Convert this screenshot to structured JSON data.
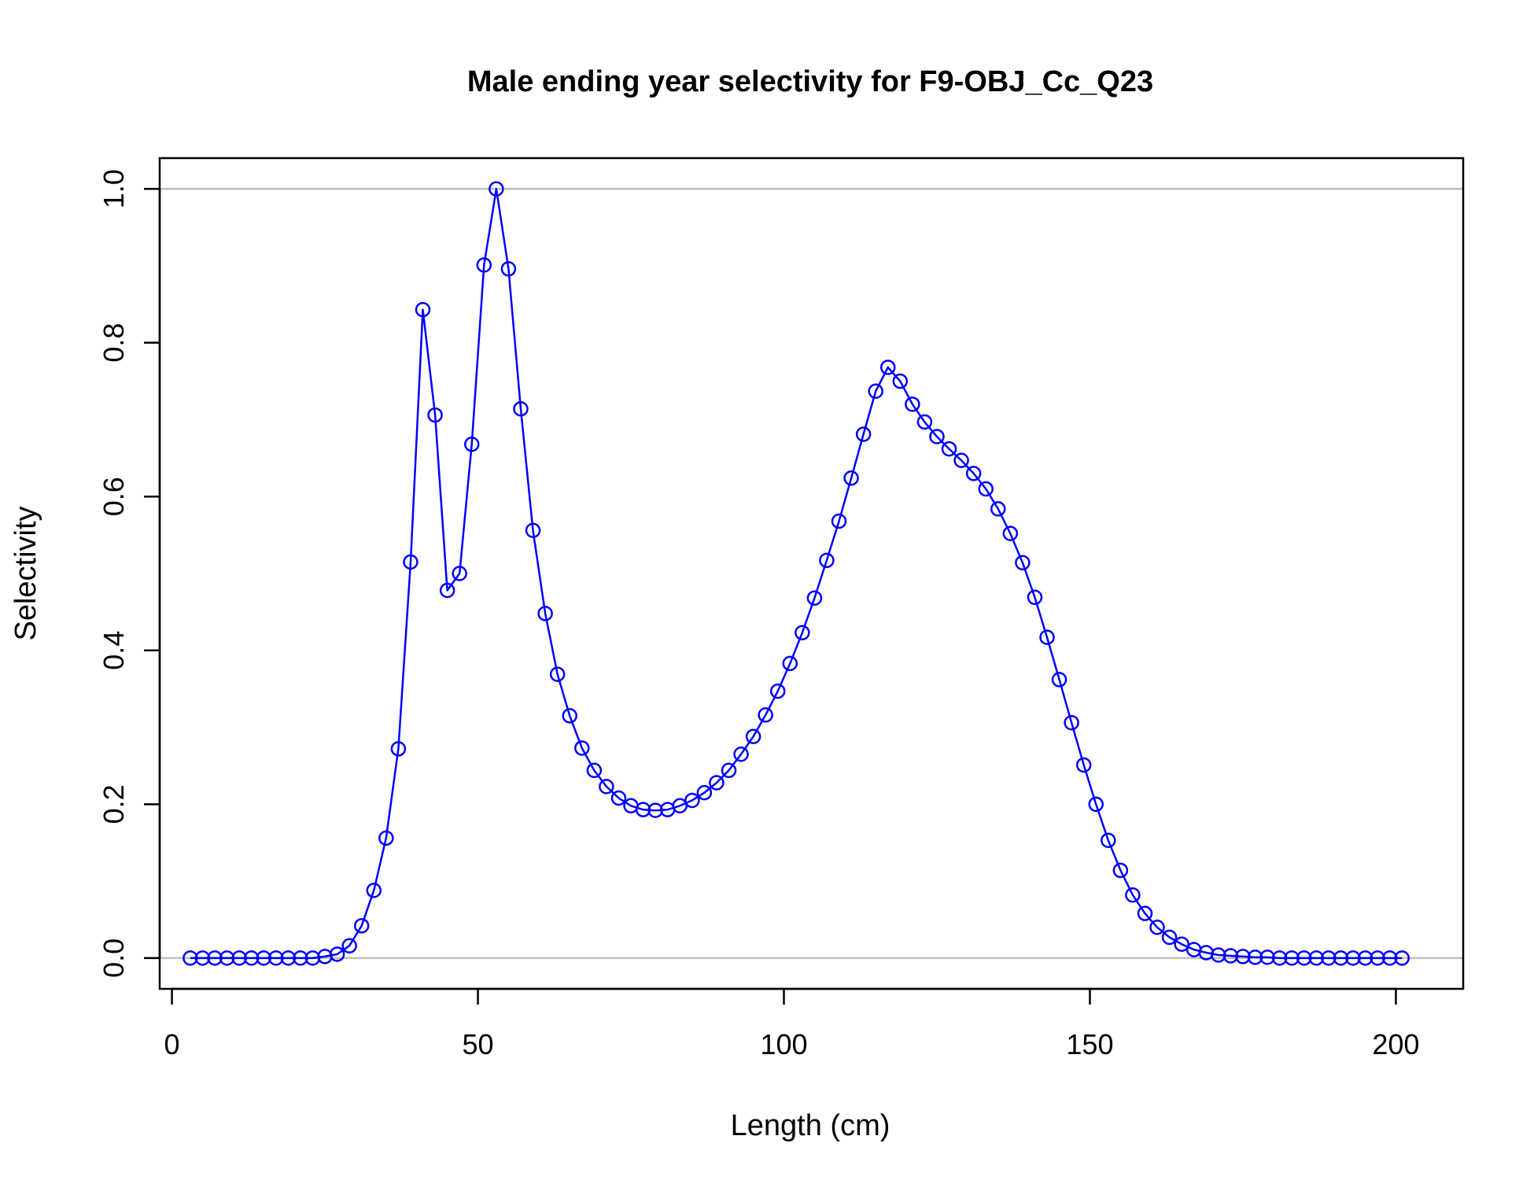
{
  "chart_data": {
    "type": "line",
    "title": "Male ending year selectivity for F9-OBJ_Cc_Q23",
    "xlabel": "Length (cm)",
    "ylabel": "Selectivity",
    "xlim": [
      -2,
      211
    ],
    "ylim": [
      -0.04,
      1.04
    ],
    "xticks": [
      0,
      50,
      100,
      150,
      200
    ],
    "xtick_labels": [
      "0",
      "50",
      "100",
      "150",
      "200"
    ],
    "yticks": [
      0.0,
      0.2,
      0.4,
      0.6,
      0.8,
      1.0
    ],
    "ytick_labels": [
      "0.0",
      "0.2",
      "0.4",
      "0.6",
      "0.8",
      "1.0"
    ],
    "reference_lines_y": [
      0,
      1
    ],
    "grid": false,
    "series": [
      {
        "color": "#0000ff",
        "marker": "open-circle",
        "x": [
          3,
          5,
          7,
          9,
          11,
          13,
          15,
          17,
          19,
          21,
          23,
          25,
          27,
          29,
          31,
          33,
          35,
          37,
          39,
          41,
          43,
          45,
          47,
          49,
          51,
          53,
          55,
          57,
          59,
          61,
          63,
          65,
          67,
          69,
          71,
          73,
          75,
          77,
          79,
          81,
          83,
          85,
          87,
          89,
          91,
          93,
          95,
          97,
          99,
          101,
          103,
          105,
          107,
          109,
          111,
          113,
          115,
          117,
          119,
          121,
          123,
          125,
          127,
          129,
          131,
          133,
          135,
          137,
          139,
          141,
          143,
          145,
          147,
          149,
          151,
          153,
          155,
          157,
          159,
          161,
          163,
          165,
          167,
          169,
          171,
          173,
          175,
          177,
          179,
          181,
          183,
          185,
          187,
          189,
          191,
          193,
          195,
          197,
          199,
          201
        ],
        "y": [
          0,
          0,
          0,
          0,
          0,
          0,
          0,
          0,
          0,
          0,
          0,
          0.002,
          0.005,
          0.016,
          0.042,
          0.088,
          0.156,
          0.272,
          0.515,
          0.843,
          0.706,
          0.478,
          0.5,
          0.668,
          0.901,
          1.0,
          0.896,
          0.714,
          0.556,
          0.448,
          0.369,
          0.315,
          0.273,
          0.244,
          0.223,
          0.208,
          0.198,
          0.193,
          0.192,
          0.193,
          0.198,
          0.205,
          0.215,
          0.228,
          0.244,
          0.265,
          0.288,
          0.316,
          0.347,
          0.383,
          0.423,
          0.468,
          0.517,
          0.568,
          0.624,
          0.681,
          0.737,
          0.768,
          0.75,
          0.72,
          0.697,
          0.678,
          0.662,
          0.647,
          0.63,
          0.61,
          0.584,
          0.552,
          0.514,
          0.469,
          0.417,
          0.362,
          0.306,
          0.251,
          0.2,
          0.153,
          0.114,
          0.082,
          0.058,
          0.04,
          0.027,
          0.018,
          0.011,
          0.007,
          0.004,
          0.003,
          0.002,
          0.001,
          0.001,
          0,
          0,
          0,
          0,
          0,
          0,
          0,
          0,
          0,
          0,
          0
        ]
      }
    ]
  }
}
